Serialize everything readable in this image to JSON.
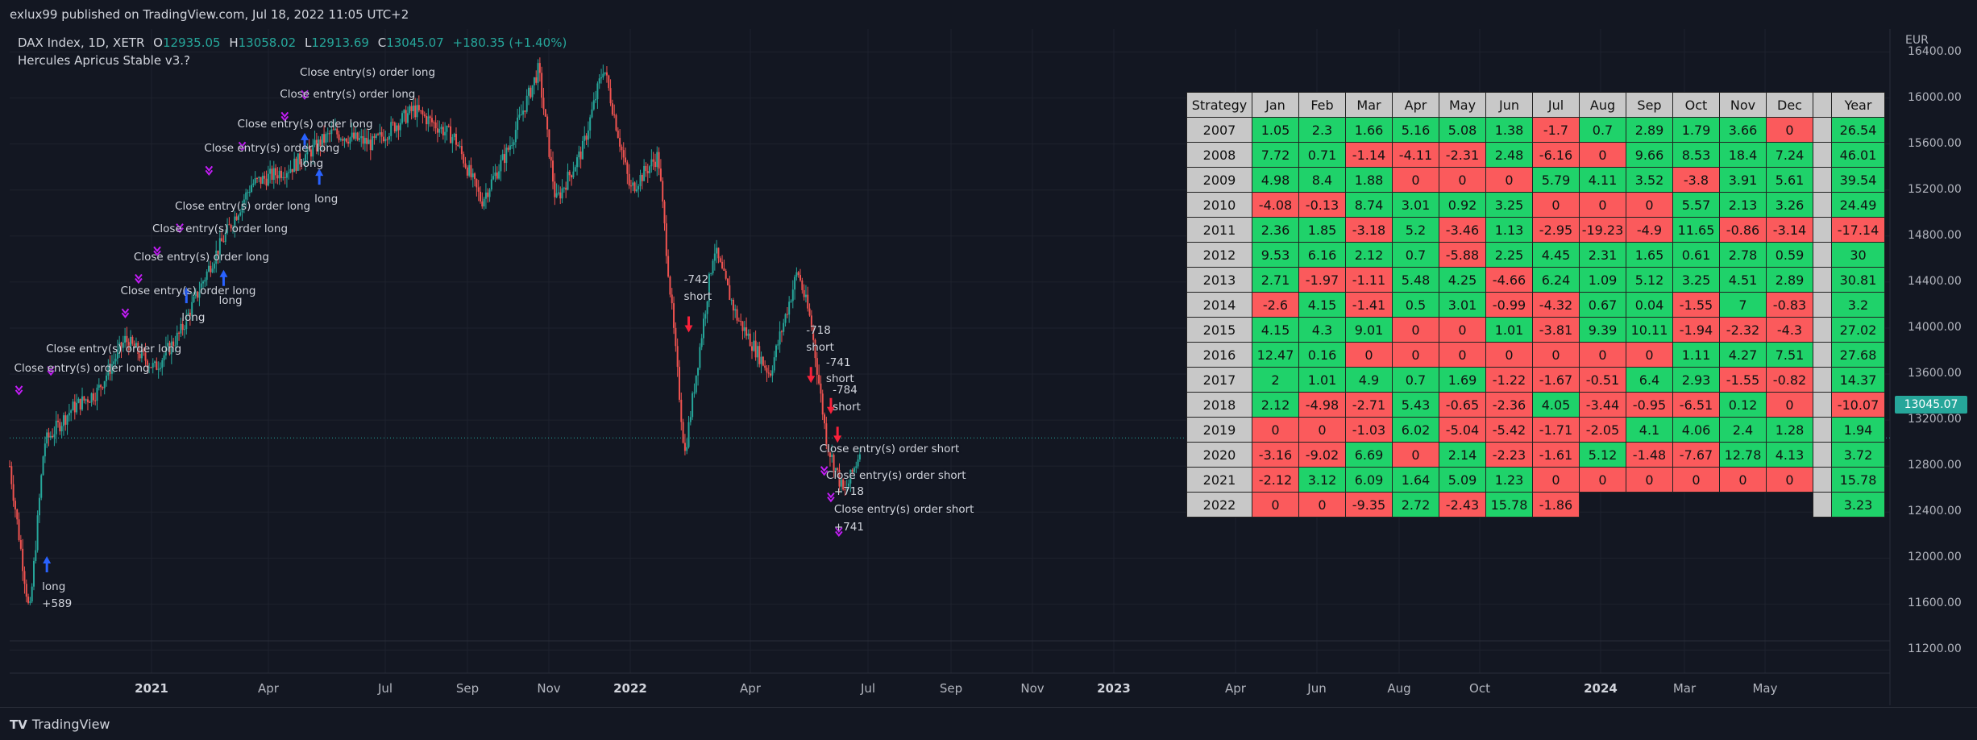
{
  "header": {
    "published": "exlux99 published on TradingView.com, Jul 18, 2022 11:05 UTC+2",
    "symbol": "DAX Index, 1D, XETR",
    "ohlc": [
      {
        "label": "O",
        "value": "12935.05"
      },
      {
        "label": "H",
        "value": "13058.02"
      },
      {
        "label": "L",
        "value": "12913.69"
      },
      {
        "label": "C",
        "value": "13045.07"
      }
    ],
    "change": "+180.35 (+1.40%)",
    "strategy_name": "Hercules Apricus Stable v3.?"
  },
  "price_axis": {
    "currency": "EUR",
    "last_price": "13045.07",
    "last_price_color": "#26a69a"
  },
  "footer": {
    "brand": "TradingView",
    "logo_icon": "tradingview-logo-icon"
  },
  "colors": {
    "up": "#26a69a",
    "down": "#ef5350",
    "long_arrow": "#2962ff",
    "short_arrow": "#f7213a",
    "exit_marker": "#c21cf5",
    "table_positive": "#1fd26a",
    "table_negative": "#fb5a5c",
    "table_header": "#c8c8c8"
  },
  "chart_data": [
    {
      "type": "candlestick",
      "series": [
        {
          "name": "DAX Index, 1D, XETR"
        }
      ],
      "ylim": [
        11000,
        16600
      ],
      "y_ticks": [
        11200,
        11600,
        12000,
        12400,
        12800,
        13200,
        13600,
        14000,
        14400,
        14800,
        15200,
        15600,
        16000,
        16400
      ],
      "x_ticks": [
        {
          "label": "2021",
          "major": true
        },
        {
          "label": "Apr"
        },
        {
          "label": "Jul"
        },
        {
          "label": "Sep"
        },
        {
          "label": "Nov"
        },
        {
          "label": "2022",
          "major": true
        },
        {
          "label": "Apr"
        },
        {
          "label": "Jul"
        },
        {
          "label": "Sep"
        },
        {
          "label": "Nov"
        },
        {
          "label": "2023",
          "major": true
        },
        {
          "label": "Apr"
        },
        {
          "label": "Jun"
        },
        {
          "label": "Aug"
        },
        {
          "label": "Oct"
        },
        {
          "label": "2024",
          "major": true
        },
        {
          "label": "Mar"
        },
        {
          "label": "May"
        }
      ],
      "x_range": [
        "2020-10-15",
        "2024-08-30"
      ],
      "price_path": [
        [
          "2020-10-15",
          12800
        ],
        [
          "2020-10-30",
          11500
        ],
        [
          "2020-11-10",
          13000
        ],
        [
          "2020-12-01",
          13300
        ],
        [
          "2020-12-20",
          13450
        ],
        [
          "2021-01-10",
          13900
        ],
        [
          "2021-02-01",
          13650
        ],
        [
          "2021-02-20",
          13950
        ],
        [
          "2021-03-15",
          14550
        ],
        [
          "2021-04-15",
          15250
        ],
        [
          "2021-05-15",
          15400
        ],
        [
          "2021-06-15",
          15700
        ],
        [
          "2021-07-15",
          15600
        ],
        [
          "2021-08-15",
          15900
        ],
        [
          "2021-09-15",
          15650
        ],
        [
          "2021-10-05",
          15100
        ],
        [
          "2021-10-25",
          15550
        ],
        [
          "2021-11-17",
          16250
        ],
        [
          "2021-11-30",
          15100
        ],
        [
          "2021-12-20",
          15550
        ],
        [
          "2022-01-05",
          16280
        ],
        [
          "2022-01-25",
          15200
        ],
        [
          "2022-02-15",
          15500
        ],
        [
          "2022-03-07",
          12900
        ],
        [
          "2022-03-29",
          14700
        ],
        [
          "2022-04-15",
          14100
        ],
        [
          "2022-05-10",
          13600
        ],
        [
          "2022-05-31",
          14500
        ],
        [
          "2022-06-10",
          14050
        ],
        [
          "2022-06-22",
          13000
        ],
        [
          "2022-07-05",
          12550
        ],
        [
          "2022-07-15",
          12860
        ],
        [
          "2022-07-18",
          13045.07
        ]
      ],
      "annotations": [
        {
          "text": "Close entry(s) order long",
          "x": "2020-10-22",
          "price": 13650
        },
        {
          "text": "Close entry(s) order long",
          "x": "2020-11-15",
          "price": 13820
        },
        {
          "text": "Close entry(s) order long",
          "x": "2021-01-10",
          "price": 14320
        },
        {
          "text": "Close entry(s) order long",
          "x": "2021-01-20",
          "price": 14620
        },
        {
          "text": "Close entry(s) order long",
          "x": "2021-02-03",
          "price": 14860
        },
        {
          "text": "Close entry(s) order long",
          "x": "2021-02-20",
          "price": 15060
        },
        {
          "text": "Close entry(s) order long",
          "x": "2021-03-14",
          "price": 15560
        },
        {
          "text": "Close entry(s) order long",
          "x": "2021-04-08",
          "price": 15770
        },
        {
          "text": "Close entry(s) order long",
          "x": "2021-05-10",
          "price": 16030
        },
        {
          "text": "Close entry(s) order long",
          "x": "2021-05-25",
          "price": 16220
        },
        {
          "text": "long",
          "x": "2020-11-12",
          "price": 11750
        },
        {
          "text": "+589",
          "x": "2020-11-12",
          "price": 11600
        },
        {
          "text": "long",
          "x": "2021-02-25",
          "price": 14090
        },
        {
          "text": "long",
          "x": "2021-03-25",
          "price": 14240
        },
        {
          "text": "long",
          "x": "2021-05-25",
          "price": 15430
        },
        {
          "text": "long",
          "x": "2021-06-05",
          "price": 15120
        },
        {
          "text": "-742",
          "x": "2022-03-10",
          "price": 14420
        },
        {
          "text": "short",
          "x": "2022-03-10",
          "price": 14270
        },
        {
          "text": "-718",
          "x": "2022-06-10",
          "price": 13980
        },
        {
          "text": "short",
          "x": "2022-06-10",
          "price": 13830
        },
        {
          "text": "-741",
          "x": "2022-06-25",
          "price": 13700
        },
        {
          "text": "short",
          "x": "2022-06-25",
          "price": 13560
        },
        {
          "text": "-784",
          "x": "2022-06-30",
          "price": 13460
        },
        {
          "text": "short",
          "x": "2022-06-30",
          "price": 13310
        },
        {
          "text": "Close entry(s) order short",
          "x": "2022-06-20",
          "price": 12950
        },
        {
          "text": "Close entry(s) order short",
          "x": "2022-06-25",
          "price": 12720
        },
        {
          "text": "+718",
          "x": "2022-07-01",
          "price": 12580
        },
        {
          "text": "Close entry(s) order short",
          "x": "2022-07-01",
          "price": 12420
        },
        {
          "text": "+741",
          "x": "2022-07-01",
          "price": 12270
        }
      ]
    },
    {
      "type": "table",
      "title": "",
      "columns": [
        "Strategy",
        "Jan",
        "Feb",
        "Mar",
        "Apr",
        "May",
        "Jun",
        "Jul",
        "Aug",
        "Sep",
        "Oct",
        "Nov",
        "Dec",
        "",
        "Year"
      ],
      "rows": [
        {
          "year": "2007",
          "months": [
            "1.05",
            "2.3",
            "1.66",
            "5.16",
            "5.08",
            "1.38",
            "-1.7",
            "0.7",
            "2.89",
            "1.79",
            "3.66",
            "0"
          ],
          "total": "26.54"
        },
        {
          "year": "2008",
          "months": [
            "7.72",
            "0.71",
            "-1.14",
            "-4.11",
            "-2.31",
            "2.48",
            "-6.16",
            "0",
            "9.66",
            "8.53",
            "18.4",
            "7.24"
          ],
          "total": "46.01"
        },
        {
          "year": "2009",
          "months": [
            "4.98",
            "8.4",
            "1.88",
            "0",
            "0",
            "0",
            "5.79",
            "4.11",
            "3.52",
            "-3.8",
            "3.91",
            "5.61"
          ],
          "total": "39.54"
        },
        {
          "year": "2010",
          "months": [
            "-4.08",
            "-0.13",
            "8.74",
            "3.01",
            "0.92",
            "3.25",
            "0",
            "0",
            "0",
            "5.57",
            "2.13",
            "3.26"
          ],
          "total": "24.49"
        },
        {
          "year": "2011",
          "months": [
            "2.36",
            "1.85",
            "-3.18",
            "5.2",
            "-3.46",
            "1.13",
            "-2.95",
            "-19.23",
            "-4.9",
            "11.65",
            "-0.86",
            "-3.14"
          ],
          "total": "-17.14"
        },
        {
          "year": "2012",
          "months": [
            "9.53",
            "6.16",
            "2.12",
            "0.7",
            "-5.88",
            "2.25",
            "4.45",
            "2.31",
            "1.65",
            "0.61",
            "2.78",
            "0.59"
          ],
          "total": "30"
        },
        {
          "year": "2013",
          "months": [
            "2.71",
            "-1.97",
            "-1.11",
            "5.48",
            "4.25",
            "-4.66",
            "6.24",
            "1.09",
            "5.12",
            "3.25",
            "4.51",
            "2.89"
          ],
          "total": "30.81"
        },
        {
          "year": "2014",
          "months": [
            "-2.6",
            "4.15",
            "-1.41",
            "0.5",
            "3.01",
            "-0.99",
            "-4.32",
            "0.67",
            "0.04",
            "-1.55",
            "7",
            "-0.83"
          ],
          "total": "3.2"
        },
        {
          "year": "2015",
          "months": [
            "4.15",
            "4.3",
            "9.01",
            "0",
            "0",
            "1.01",
            "-3.81",
            "9.39",
            "10.11",
            "-1.94",
            "-2.32",
            "-4.3"
          ],
          "total": "27.02"
        },
        {
          "year": "2016",
          "months": [
            "12.47",
            "0.16",
            "0",
            "0",
            "0",
            "0",
            "0",
            "0",
            "0",
            "1.11",
            "4.27",
            "7.51"
          ],
          "total": "27.68"
        },
        {
          "year": "2017",
          "months": [
            "2",
            "1.01",
            "4.9",
            "0.7",
            "1.69",
            "-1.22",
            "-1.67",
            "-0.51",
            "6.4",
            "2.93",
            "-1.55",
            "-0.82"
          ],
          "total": "14.37"
        },
        {
          "year": "2018",
          "months": [
            "2.12",
            "-4.98",
            "-2.71",
            "5.43",
            "-0.65",
            "-2.36",
            "4.05",
            "-3.44",
            "-0.95",
            "-6.51",
            "0.12",
            "0"
          ],
          "total": "-10.07"
        },
        {
          "year": "2019",
          "months": [
            "0",
            "0",
            "-1.03",
            "6.02",
            "-5.04",
            "-5.42",
            "-1.71",
            "-2.05",
            "4.1",
            "4.06",
            "2.4",
            "1.28"
          ],
          "total": "1.94"
        },
        {
          "year": "2020",
          "months": [
            "-3.16",
            "-9.02",
            "6.69",
            "0",
            "2.14",
            "-2.23",
            "-1.61",
            "5.12",
            "-1.48",
            "-7.67",
            "12.78",
            "4.13"
          ],
          "total": "3.72"
        },
        {
          "year": "2021",
          "months": [
            "-2.12",
            "3.12",
            "6.09",
            "1.64",
            "5.09",
            "1.23",
            "0",
            "0",
            "0",
            "0",
            "0",
            "0"
          ],
          "total": "15.78"
        },
        {
          "year": "2022",
          "months": [
            "0",
            "0",
            "-9.35",
            "2.72",
            "-2.43",
            "15.78",
            "-1.86"
          ],
          "total": "3.23"
        }
      ],
      "positive_color": "#1fd26a",
      "negative_color": "#fb5a5c"
    }
  ]
}
